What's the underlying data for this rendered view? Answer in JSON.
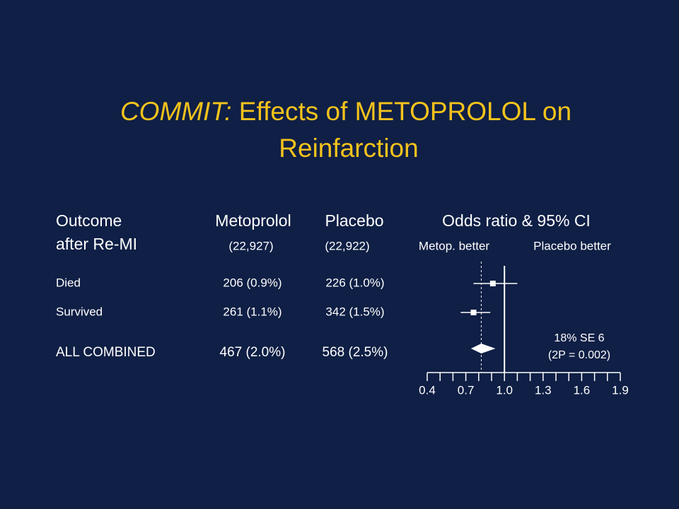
{
  "slide": {
    "title_italic": "COMMIT:",
    "title_rest": "Effects of METOPROLOL on",
    "title_line2": "Reinfarction",
    "headers": [
      "Outcome",
      "Metoprolol",
      "Placebo",
      "Odds ratio & 95% CI"
    ],
    "headers_line2": [
      "after Re-MI",
      "(22,927)",
      "(22,922)"
    ],
    "direction_labels": [
      "Metop. better",
      "Placebo better"
    ],
    "rows": [
      [
        "Died",
        "206 (0.9%)",
        "226 (1.0%)"
      ],
      [
        "Survived",
        "261 (1.1%)",
        "342 (1.5%)"
      ],
      [
        "ALL COMBINED",
        "467 (2.0%)",
        "568 (2.5%)"
      ]
    ]
  },
  "chart_data": {
    "type": "forest",
    "values": [
      0.91,
      0.76,
      0.82
    ],
    "lower": [
      0.76,
      0.66,
      0.74
    ],
    "upper": [
      1.1,
      0.89,
      0.93
    ],
    "shapes": [
      "square",
      "square",
      "diamond"
    ],
    "reference": 1,
    "xlim": [
      0.4,
      1.9
    ],
    "xticks": [
      0.4,
      0.7,
      {
        "value": 1,
        "label": "1.0"
      },
      1.3,
      1.6,
      1.9
    ],
    "xminorticks": [
      0.5,
      0.6,
      0.8,
      0.9,
      1.1,
      1.2,
      1.4,
      1.5,
      1.7,
      1.8
    ],
    "annotations": [
      "18% SE 6",
      "(2P = 0.002)"
    ],
    "color": "#ffffff"
  }
}
